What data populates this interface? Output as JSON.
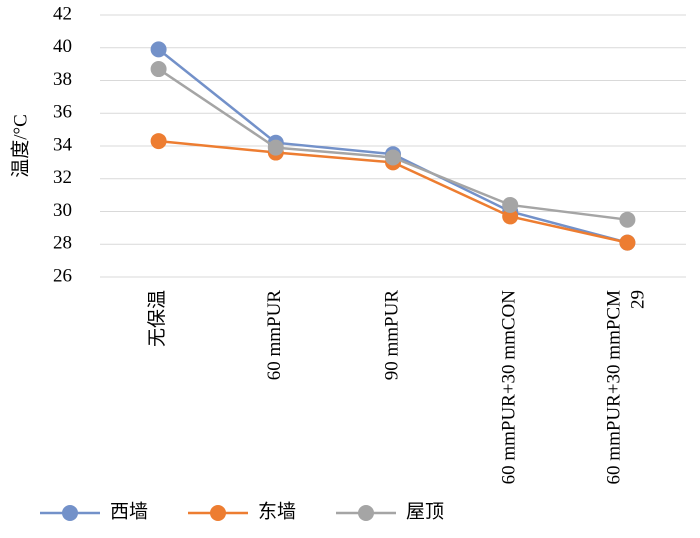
{
  "chart_data": {
    "type": "line",
    "y_label": "温度/°C",
    "categories": [
      "无保温",
      "60 mmPUR",
      "90 mmPUR",
      "60 mmPUR+30 mmCON",
      "60 mmPUR+30 mmPCM 29"
    ],
    "series": [
      {
        "name": "西墙",
        "color": "#7391c9",
        "values": [
          39.9,
          34.2,
          33.5,
          30.0,
          28.1
        ]
      },
      {
        "name": "东墙",
        "color": "#ed7d31",
        "values": [
          34.3,
          33.6,
          33.0,
          29.7,
          28.1
        ]
      },
      {
        "name": "屋顶",
        "color": "#a5a5a5",
        "values": [
          38.7,
          33.9,
          33.3,
          30.4,
          29.5
        ]
      }
    ],
    "ylim": [
      26,
      42
    ],
    "yticks": [
      26,
      28,
      30,
      32,
      34,
      36,
      38,
      40,
      42
    ],
    "grid": true,
    "legend": "bottom"
  }
}
